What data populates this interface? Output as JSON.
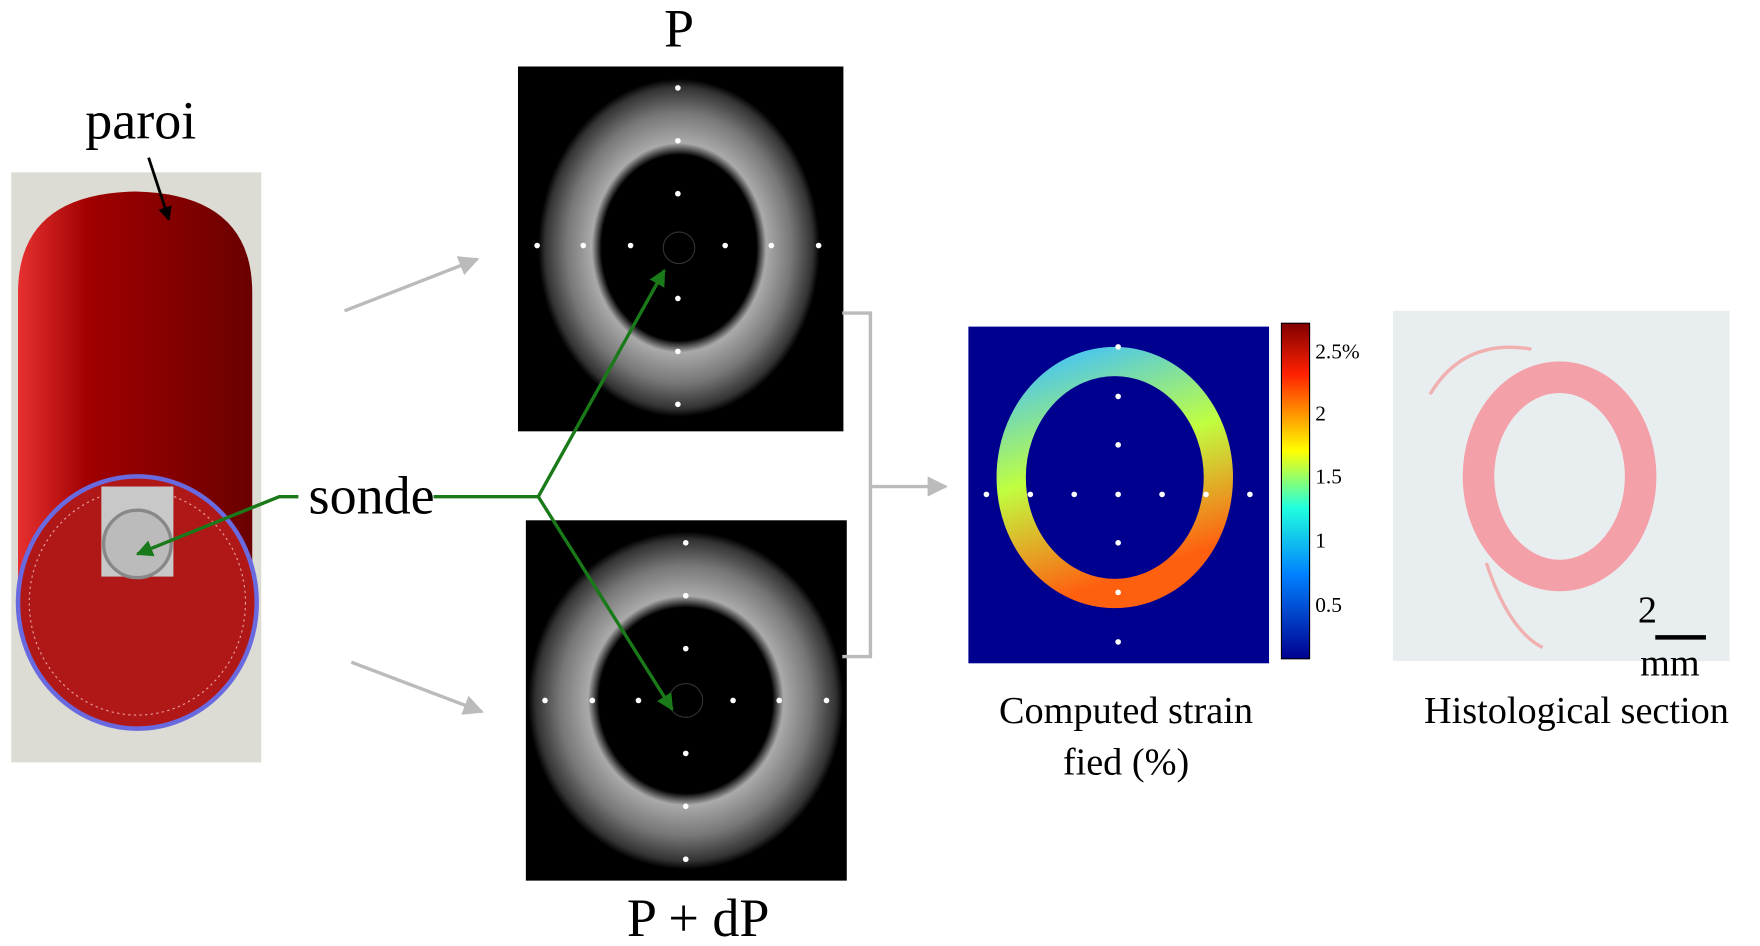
{
  "labels": {
    "wall": "paroi",
    "probe": "sonde",
    "pressure_top": "P",
    "pressure_bottom": "P + dP"
  },
  "strain_map": {
    "caption_line1": "Computed strain",
    "caption_line2": "fied (%)",
    "colorbar_ticks": [
      "2.5%",
      "2",
      "1.5",
      "1",
      "0.5"
    ]
  },
  "histology": {
    "caption": "Histological section",
    "scale_value": "2",
    "scale_unit": "mm"
  }
}
